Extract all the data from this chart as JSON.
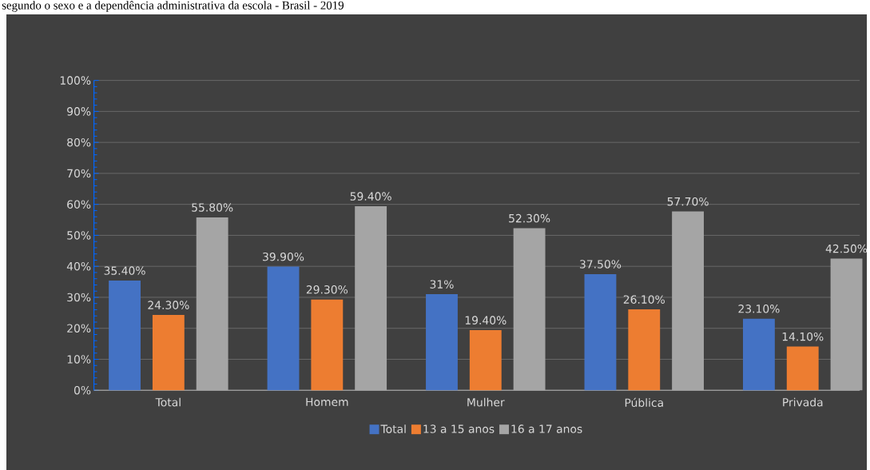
{
  "chart_data": {
    "type": "bar",
    "title": "segundo o sexo e a dependência administrativa da escola - Brasil - 2019",
    "categories": [
      "Total",
      "Homem",
      "Mulher",
      "Pública",
      "Privada"
    ],
    "series": [
      {
        "name": "Total",
        "color": "#4472c4",
        "values": [
          35.4,
          39.9,
          31,
          37.5,
          23.1
        ],
        "value_labels": [
          "35.40%",
          "39.90%",
          "31%",
          "37.50%",
          "23.10%"
        ]
      },
      {
        "name": "13 a 15 anos",
        "color": "#ed7d31",
        "values": [
          24.3,
          29.3,
          19.4,
          26.1,
          14.1
        ],
        "value_labels": [
          "24.30%",
          "29.30%",
          "19.40%",
          "26.10%",
          "14.10%"
        ]
      },
      {
        "name": "16 a 17 anos",
        "color": "#a5a5a5",
        "values": [
          55.8,
          59.4,
          52.3,
          57.7,
          42.5
        ],
        "value_labels": [
          "55.80%",
          "59.40%",
          "52.30%",
          "57.70%",
          "42.50%"
        ]
      }
    ],
    "ylim": [
      0,
      100
    ],
    "yticks": [
      {
        "value": 0,
        "label": "0%"
      },
      {
        "value": 10,
        "label": "10%"
      },
      {
        "value": 20,
        "label": "20%"
      },
      {
        "value": 30,
        "label": "30%"
      },
      {
        "value": 40,
        "label": "40%"
      },
      {
        "value": 50,
        "label": "50%"
      },
      {
        "value": 60,
        "label": "60%"
      },
      {
        "value": 70,
        "label": "70%"
      },
      {
        "value": 80,
        "label": "80%"
      },
      {
        "value": 90,
        "label": "90%"
      },
      {
        "value": 100,
        "label": "100%"
      }
    ],
    "grid": "y",
    "legend": "bottom"
  }
}
